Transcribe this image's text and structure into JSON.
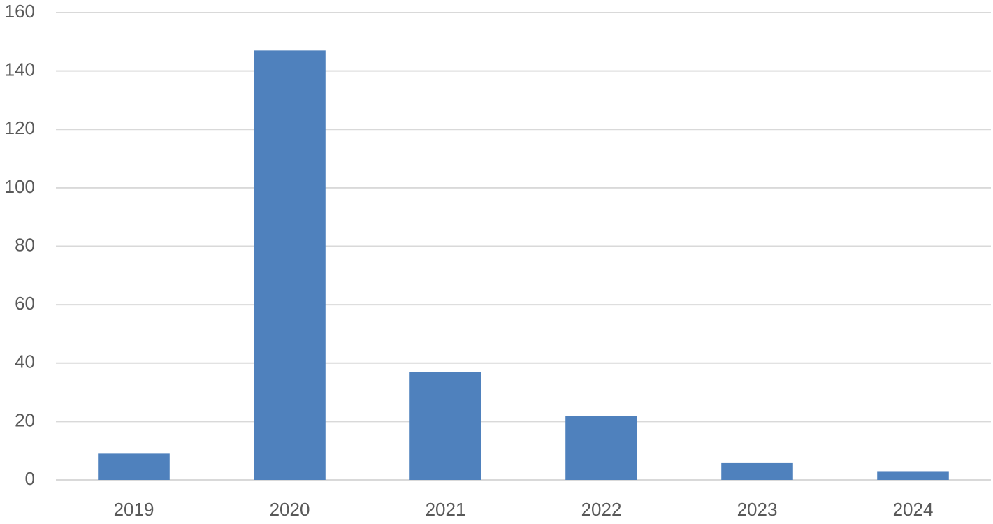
{
  "chart_data": {
    "type": "bar",
    "categories": [
      "2019",
      "2020",
      "2021",
      "2022",
      "2023",
      "2024"
    ],
    "values": [
      9,
      147,
      37,
      22,
      6,
      3
    ],
    "color": "#4f81bd",
    "ylim": [
      0,
      160
    ],
    "yticks": [
      0,
      20,
      40,
      60,
      80,
      100,
      120,
      140,
      160
    ],
    "grid": true
  }
}
